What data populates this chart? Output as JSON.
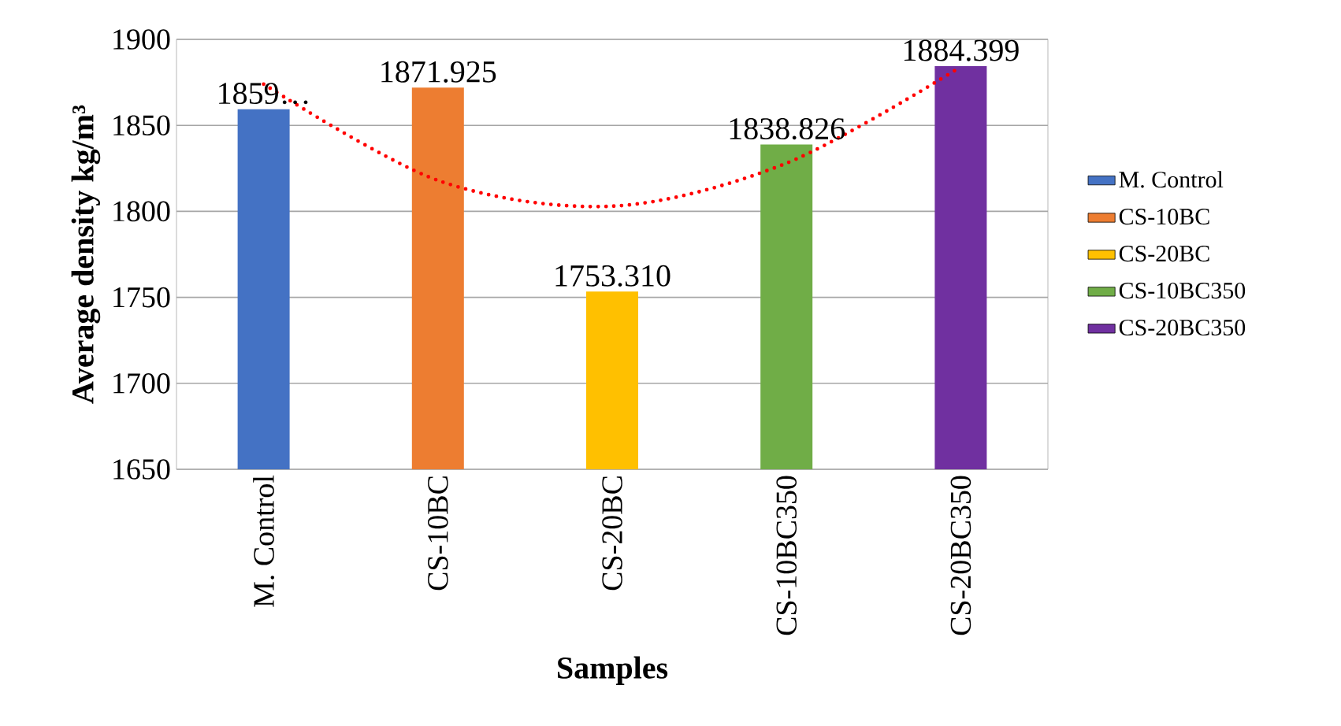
{
  "chart_data": {
    "type": "bar",
    "xlabel": "Samples",
    "ylabel": "Average density kg/m³",
    "categories": [
      "M. Control",
      "CS-10BC",
      "CS-20BC",
      "CS-10BC350",
      "CS-20BC350"
    ],
    "ylim": [
      1650,
      1900
    ],
    "yticks": [
      1650,
      1700,
      1750,
      1800,
      1850,
      1900
    ],
    "grid": "y",
    "legend": "right",
    "series": [
      {
        "name": "M. Control",
        "color": "#4472c4",
        "values": [
          1859.4,
          null,
          null,
          null,
          null
        ],
        "value_labels": [
          "1859…",
          null,
          null,
          null,
          null
        ]
      },
      {
        "name": "CS-10BC",
        "color": "#ed7d31",
        "values": [
          null,
          1871.925,
          null,
          null,
          null
        ],
        "value_labels": [
          null,
          "1871.925",
          null,
          null,
          null
        ]
      },
      {
        "name": "CS-20BC",
        "color": "#ffc000",
        "values": [
          null,
          null,
          1753.31,
          null,
          null
        ],
        "value_labels": [
          null,
          null,
          "1753.310",
          null,
          null
        ]
      },
      {
        "name": "CS-10BC350",
        "color": "#70ad47",
        "values": [
          null,
          null,
          null,
          1838.826,
          null
        ],
        "value_labels": [
          null,
          null,
          null,
          "1838.826",
          null
        ]
      },
      {
        "name": "CS-20BC350",
        "color": "#7030a0",
        "values": [
          null,
          null,
          null,
          null,
          1884.399
        ],
        "value_labels": [
          null,
          null,
          null,
          null,
          "1884.399"
        ]
      },
      {
        "type": "line",
        "values": [
          1874,
          1818,
          1803,
          1828,
          1884
        ],
        "color": "#ff0000",
        "marker": "none",
        "line_style": "dotted"
      }
    ]
  }
}
